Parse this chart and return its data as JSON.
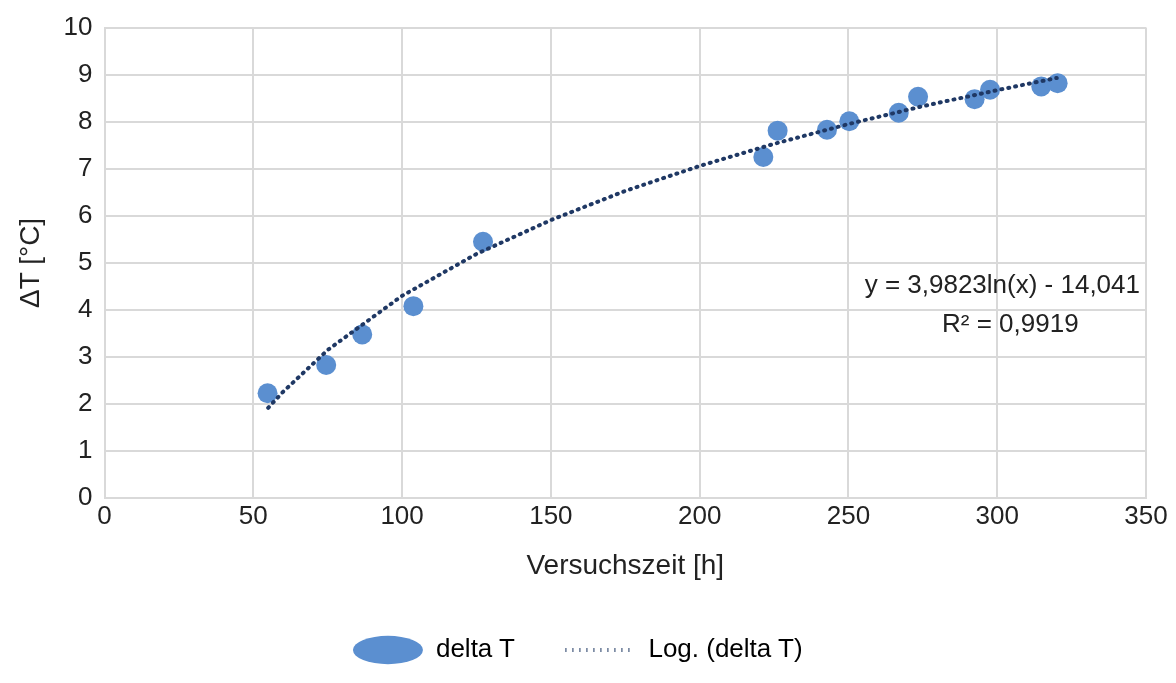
{
  "chart_data": {
    "type": "scatter",
    "xlabel": "Versuchszeit [h]",
    "ylabel": "ΔT [°C]",
    "xlim": [
      0,
      350
    ],
    "xticks": [
      0,
      50,
      100,
      150,
      200,
      250,
      300,
      350
    ],
    "ylim": [
      0,
      10
    ],
    "yticks": [
      0,
      1,
      2,
      3,
      4,
      5,
      6,
      7,
      8,
      9,
      10
    ],
    "grid": true,
    "legend": "bottom",
    "annotations": [
      "y = 3,9823ln(x) - 14,041",
      "R² = 0,9919"
    ],
    "series": [
      {
        "name": "delta T",
        "type": "scatter",
        "color": "#5b8fd0",
        "marker": "circle",
        "x": [
          54.8,
          74.5,
          86.6,
          103.8,
          127.2,
          221.4,
          226.2,
          242.8,
          250.3,
          266.9,
          273.4,
          292.4,
          297.6,
          314.8,
          320.3
        ],
        "values": [
          2.23,
          2.83,
          3.48,
          4.08,
          5.45,
          7.25,
          7.81,
          7.83,
          8.01,
          8.19,
          8.53,
          8.48,
          8.68,
          8.75,
          8.82
        ]
      },
      {
        "name": "Log. (delta T)",
        "type": "line",
        "color": "#1f3864",
        "marker": "none",
        "line_style": "dotted",
        "x": [
          55,
          60,
          75,
          100,
          125,
          150,
          175,
          200,
          225,
          250,
          275,
          300,
          320
        ],
        "values": [
          1.92,
          2.26,
          3.15,
          4.3,
          5.19,
          5.91,
          6.53,
          7.06,
          7.53,
          7.95,
          8.33,
          8.67,
          8.93
        ]
      }
    ]
  }
}
